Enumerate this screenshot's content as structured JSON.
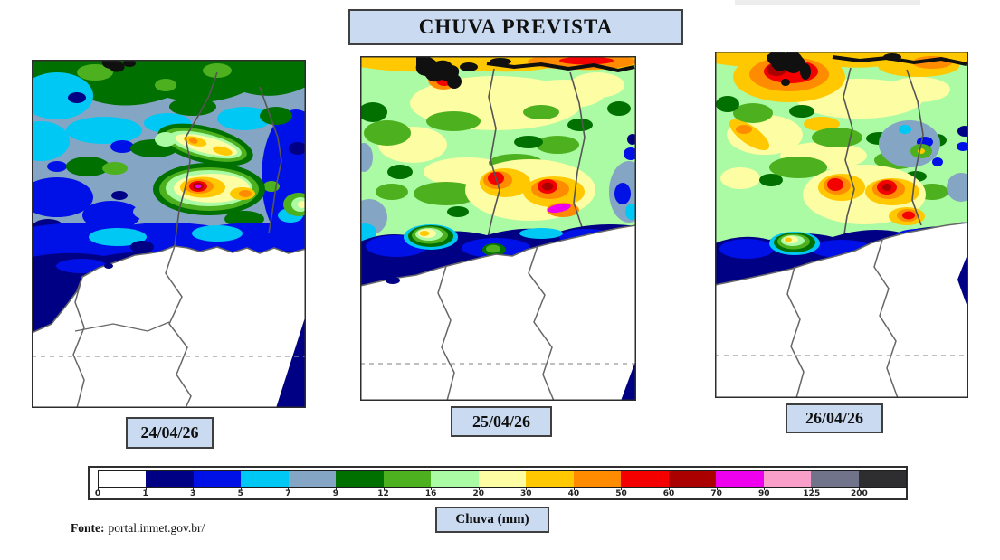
{
  "header": {
    "title": "CHUVA PREVISTA"
  },
  "panels": [
    {
      "date": "24/04/26"
    },
    {
      "date": "25/04/26"
    },
    {
      "date": "26/04/26"
    }
  ],
  "colorbar": {
    "label": "Chuva (mm)",
    "ticks": [
      "0",
      "1",
      "3",
      "5",
      "7",
      "9",
      "12",
      "16",
      "20",
      "30",
      "40",
      "50",
      "60",
      "70",
      "90",
      "125",
      "200"
    ],
    "colors": [
      "#FFFFFF",
      "#000085",
      "#0011E8",
      "#00C8F5",
      "#84A5C3",
      "#007000",
      "#4DB01E",
      "#AAFBA3",
      "#FDFDA4",
      "#FFC800",
      "#FF8C00",
      "#F40000",
      "#AA0000",
      "#EE00EE",
      "#F99FC9",
      "#70738A",
      "#2E2E30"
    ]
  },
  "source": {
    "label": "Fonte:",
    "value": "portal.inmet.gov.br/"
  }
}
